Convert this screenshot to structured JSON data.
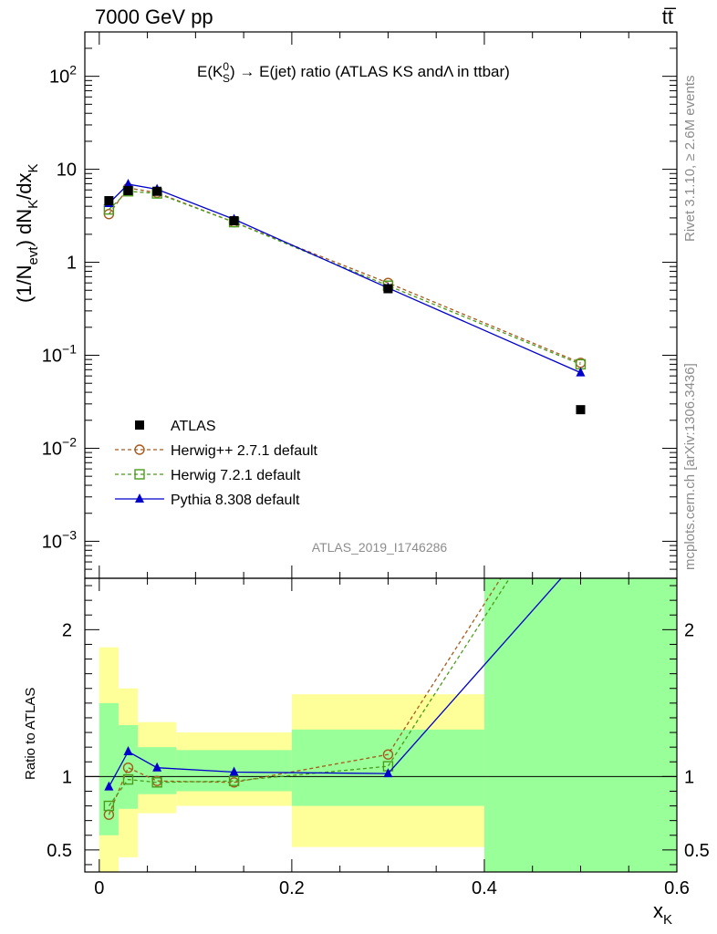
{
  "header": {
    "energy_label": "7000 GeV pp",
    "process_label": "tt̅"
  },
  "side_labels": {
    "rivet": "Rivet 3.1.10, ≥ 2.6M events",
    "mcplots": "mcplots.cern.ch [arXiv:1306.3436]"
  },
  "analysis_id": "ATLAS_2019_I1746286",
  "chart_data": [
    {
      "type": "line",
      "title": "E(K⁰S) → E(jet) ratio (ATLAS KS andΛ in ttbar)",
      "title_parts": {
        "prefix": "E(K",
        "sup": "0",
        "sub": "S",
        "suffix": ") → E(jet) ratio (ATLAS KS andΛ in ttbar)"
      },
      "ylabel": "(1/N_evt) dN_K/dx_K",
      "ylabel_parts": {
        "a": "(1/N",
        "a_sub": "evt",
        "b": ") dN",
        "b_sub": "K",
        "c": "/dx",
        "c_sub": "K"
      },
      "y_scale": "log",
      "xlim": [
        -0.015,
        0.6
      ],
      "ylim": [
        0.0004,
        300
      ],
      "y_tick_labels": [
        "10^-3",
        "10^-2",
        "10^-1",
        "1",
        "10",
        "10^2"
      ],
      "legend_position": "bottom-left",
      "series": [
        {
          "name": "ATLAS",
          "color": "#000000",
          "marker": "square-filled",
          "line": "none",
          "x": [
            0.01,
            0.03,
            0.06,
            0.14,
            0.3,
            0.5
          ],
          "y": [
            4.6,
            5.9,
            5.8,
            2.8,
            0.52,
            0.026
          ]
        },
        {
          "name": "Herwig++ 2.7.1 default",
          "color": "#a65a1e",
          "marker": "circle-open",
          "line": "dashed",
          "x": [
            0.01,
            0.03,
            0.06,
            0.14,
            0.3,
            0.5
          ],
          "y": [
            3.3,
            6.3,
            5.6,
            2.7,
            0.6,
            0.083
          ]
        },
        {
          "name": "Herwig 7.2.1 default",
          "color": "#4c9a1c",
          "marker": "square-open",
          "line": "dashed",
          "x": [
            0.01,
            0.03,
            0.06,
            0.14,
            0.3,
            0.5
          ],
          "y": [
            3.7,
            5.8,
            5.5,
            2.7,
            0.56,
            0.08
          ]
        },
        {
          "name": "Pythia 8.308 default",
          "color": "#0000cc",
          "marker": "triangle-filled",
          "line": "solid",
          "x": [
            0.01,
            0.03,
            0.06,
            0.14,
            0.3,
            0.5
          ],
          "y": [
            4.3,
            6.9,
            6.1,
            2.9,
            0.53,
            0.065
          ]
        }
      ]
    },
    {
      "type": "line",
      "ylabel": "Ratio to ATLAS",
      "xlabel": "x_K",
      "xlabel_parts": {
        "main": "x",
        "sub": "K"
      },
      "xlim": [
        -0.015,
        0.6
      ],
      "ylim": [
        0.35,
        2.35
      ],
      "x_ticks": [
        0,
        0.2,
        0.4,
        0.6
      ],
      "x_tick_labels": [
        "0",
        "0.2",
        "0.4",
        "0.6"
      ],
      "y_ticks": [
        0.5,
        1,
        2
      ],
      "y_tick_labels": [
        "0.5",
        "1",
        "2"
      ],
      "reference_line": 1,
      "uncertainty_bands": [
        {
          "x0": 0.0,
          "x1": 0.02,
          "inner": [
            0.6,
            1.5
          ],
          "outer": [
            0.3,
            1.88
          ]
        },
        {
          "x0": 0.02,
          "x1": 0.04,
          "inner": [
            0.78,
            1.35
          ],
          "outer": [
            0.45,
            1.6
          ]
        },
        {
          "x0": 0.04,
          "x1": 0.08,
          "inner": [
            0.88,
            1.2
          ],
          "outer": [
            0.75,
            1.37
          ]
        },
        {
          "x0": 0.08,
          "x1": 0.2,
          "inner": [
            0.9,
            1.18
          ],
          "outer": [
            0.8,
            1.3
          ]
        },
        {
          "x0": 0.2,
          "x1": 0.4,
          "inner": [
            0.8,
            1.32
          ],
          "outer": [
            0.52,
            1.56
          ]
        },
        {
          "x0": 0.4,
          "x1": 0.6,
          "inner": [
            0.35,
            2.35
          ],
          "outer": [
            0.35,
            2.35
          ]
        }
      ],
      "band_colors": {
        "inner": "#99ff99",
        "outer": "#ffff99"
      },
      "series": [
        {
          "name": "Herwig++ 2.7.1 default",
          "color": "#a65a1e",
          "marker": "circle-open",
          "line": "dashed",
          "x": [
            0.01,
            0.03,
            0.06,
            0.14,
            0.3,
            0.5
          ],
          "y": [
            0.74,
            1.06,
            0.97,
            0.96,
            1.15,
            3.2
          ]
        },
        {
          "name": "Herwig 7.2.1 default",
          "color": "#4c9a1c",
          "marker": "square-open",
          "line": "dashed",
          "x": [
            0.01,
            0.03,
            0.06,
            0.14,
            0.3,
            0.5
          ],
          "y": [
            0.8,
            0.98,
            0.96,
            0.97,
            1.07,
            3.1
          ]
        },
        {
          "name": "Pythia 8.308 default",
          "color": "#0000cc",
          "marker": "triangle-filled",
          "line": "solid",
          "x": [
            0.01,
            0.03,
            0.06,
            0.14,
            0.3,
            0.5
          ],
          "y": [
            0.93,
            1.17,
            1.06,
            1.03,
            1.02,
            2.5
          ]
        }
      ]
    }
  ]
}
